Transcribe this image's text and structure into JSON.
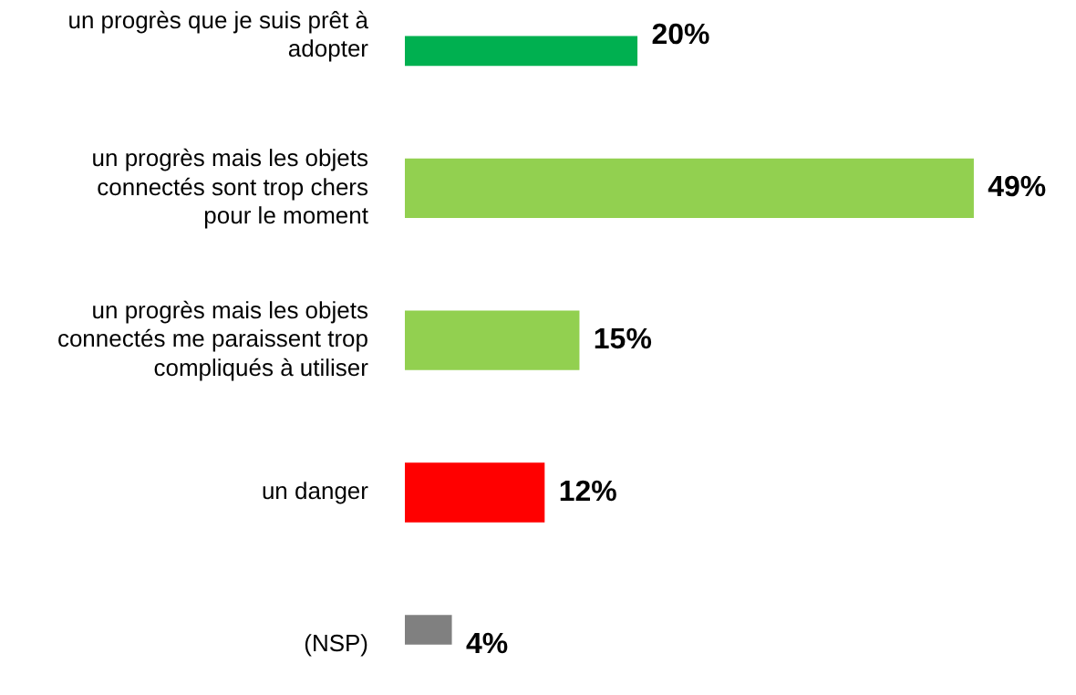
{
  "chart_data": {
    "type": "bar",
    "orientation": "horizontal",
    "categories": [
      "un progrès que je suis prêt à adopter",
      "un progrès mais les objets connectés sont trop chers pour le moment",
      "un progrès mais les objets connectés me paraissent trop compliqués à utiliser",
      "un danger",
      "(NSP)"
    ],
    "values": [
      20,
      49,
      15,
      12,
      4
    ],
    "colors": [
      "#00b050",
      "#92d050",
      "#92d050",
      "#ff0000",
      "#808080"
    ],
    "value_labels": [
      "20%",
      "49%",
      "15%",
      "12%",
      "4%"
    ],
    "legend": false
  }
}
